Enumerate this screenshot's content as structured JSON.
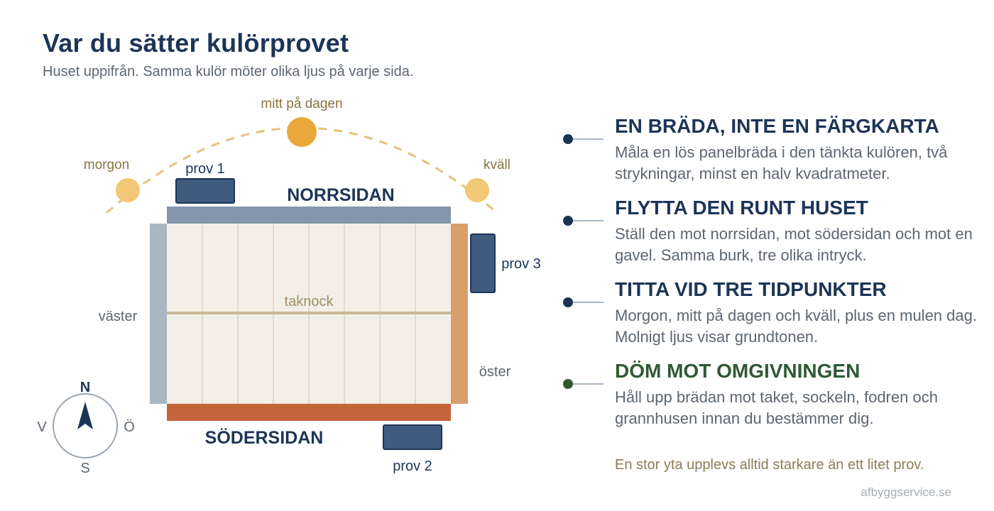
{
  "title": "Var du sätter kulörprovet",
  "subtitle": "Huset uppifrån. Samma kulör möter olika ljus på varje sida.",
  "sun": {
    "morning": "morgon",
    "noon": "mitt på dagen",
    "evening": "kväll"
  },
  "house": {
    "north": "NORRSIDAN",
    "south": "SÖDERSIDAN",
    "west": "väster",
    "east": "öster",
    "ridge": "taknock"
  },
  "samples": {
    "s1": "prov 1",
    "s2": "prov 2",
    "s3": "prov 3"
  },
  "compass": {
    "n": "N",
    "s": "S",
    "v": "V",
    "o": "Ö"
  },
  "tips": [
    {
      "heading": "EN BRÄDA, INTE EN FÄRGKARTA",
      "text": "Måla en lös panelbräda i den tänkta kulören, två strykningar, minst en halv kvadratmeter."
    },
    {
      "heading": "FLYTTA DEN RUNT HUSET",
      "text": "Ställ den mot norrsidan, mot södersidan och mot en gavel. Samma burk, tre olika intryck."
    },
    {
      "heading": "TITTA VID TRE TIDPUNKTER",
      "text": "Morgon, mitt på dagen och kväll, plus en mulen dag. Molnigt ljus visar grundtonen."
    },
    {
      "heading": "DÖM MOT OMGIVNINGEN",
      "text": "Håll upp brädan mot taket, sockeln, fodren och grannhusen innan du bestämmer dig."
    }
  ],
  "footnote": "En stor yta upplevs alltid starkare än ett litet prov.",
  "credit": "afbyggservice.se",
  "colors": {
    "navy": "#1c3557",
    "north_wall": "#8496ab",
    "south_wall": "#c4643a",
    "west_wall": "#a9b6c4",
    "east_wall": "#d8a06c",
    "roof": "#f4efe6",
    "sun_noon": "#e8a83a",
    "sun_low": "#f2c775",
    "sample": "#3f5c7e",
    "green": "#2f5a34"
  }
}
